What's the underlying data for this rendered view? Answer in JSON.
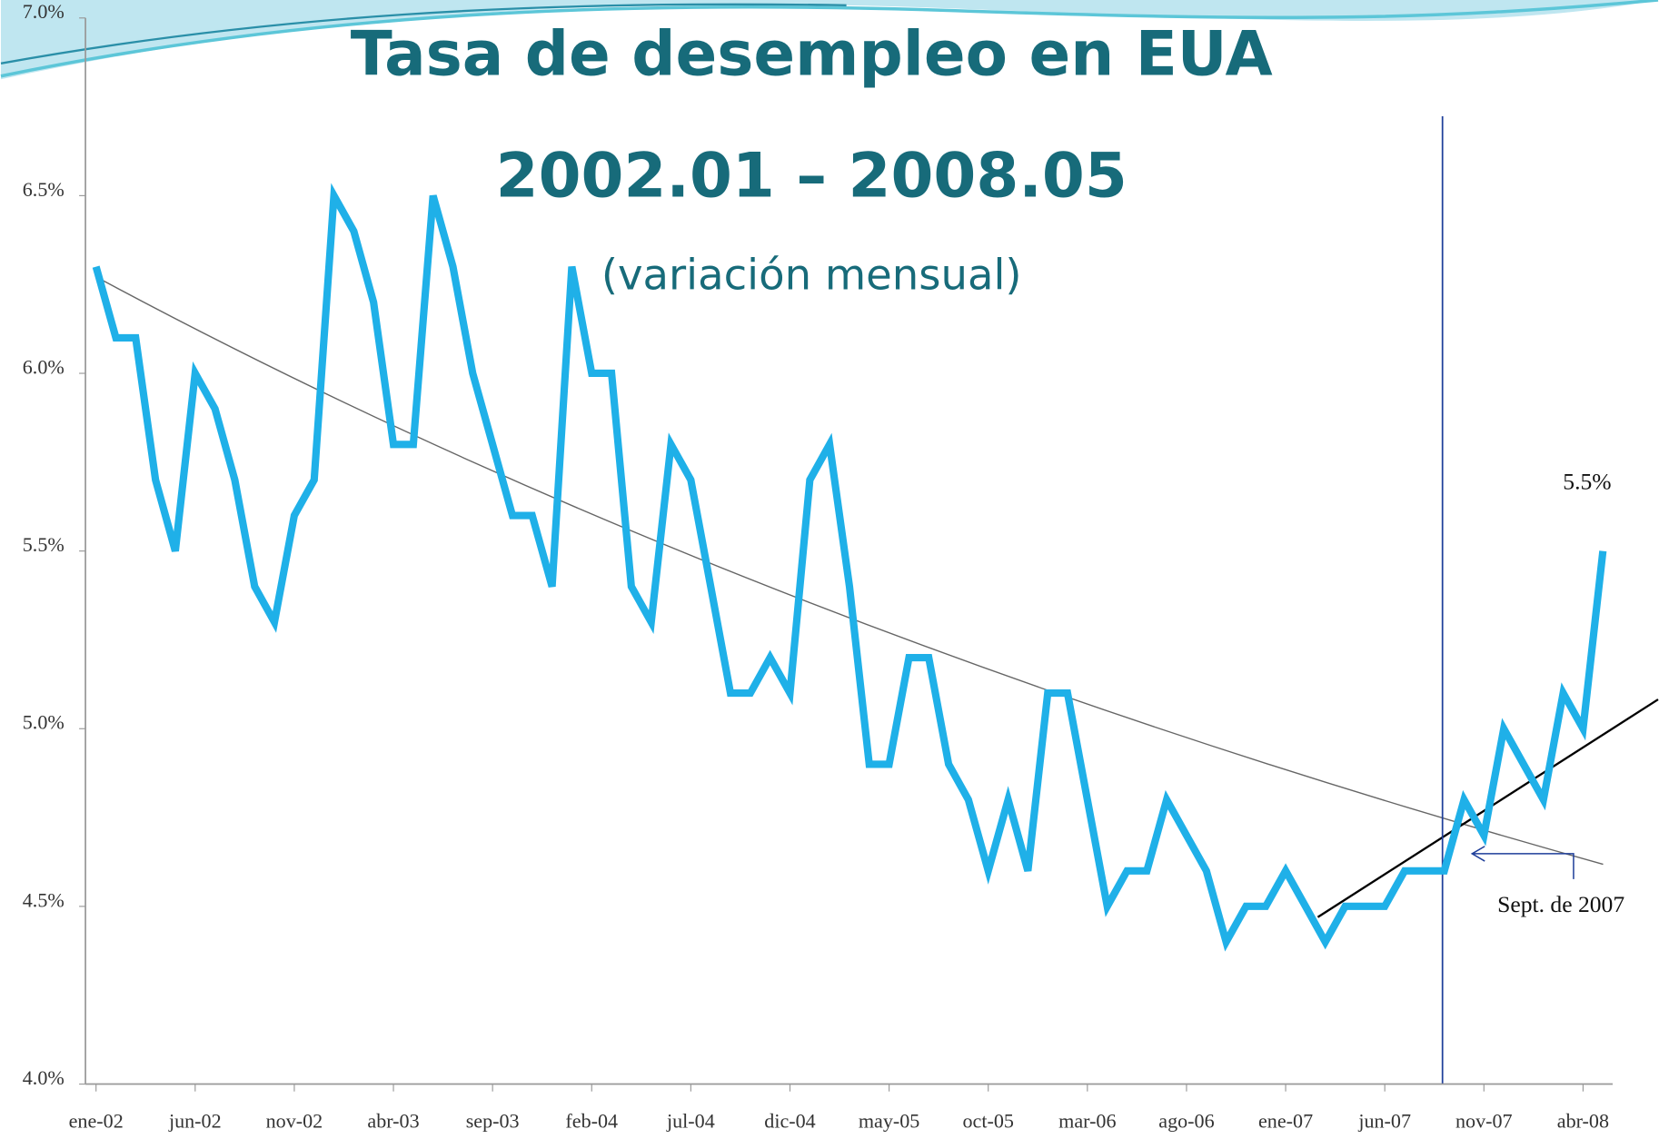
{
  "chart_data": {
    "type": "line",
    "title": "Tasa de desempleo en EUA",
    "subtitle": "2002.01 – 2008.05",
    "subtitle2": "(variación mensual)",
    "annotations": [
      "5.5%",
      "Sept. de 2007"
    ],
    "categories": [
      "ene-02",
      null,
      null,
      null,
      null,
      "jun-02",
      null,
      null,
      null,
      null,
      "nov-02",
      null,
      null,
      null,
      null,
      "abr-03",
      null,
      null,
      null,
      null,
      "sep-03",
      null,
      null,
      null,
      null,
      "feb-04",
      null,
      null,
      null,
      null,
      "jul-04",
      null,
      null,
      null,
      null,
      "dic-04",
      null,
      null,
      null,
      null,
      "may-05",
      null,
      null,
      null,
      null,
      "oct-05",
      null,
      null,
      null,
      null,
      "mar-06",
      null,
      null,
      null,
      null,
      "ago-06",
      null,
      null,
      null,
      null,
      "ene-07",
      null,
      null,
      null,
      null,
      "jun-07",
      null,
      null,
      null,
      null,
      "nov-07",
      null,
      null,
      null,
      null,
      "abr-08",
      null
    ],
    "series": [
      {
        "name": "Tasa de desempleo",
        "color": "#1fb0e8",
        "values": [
          6.3,
          6.1,
          6.1,
          5.7,
          5.5,
          6.0,
          5.9,
          5.7,
          5.4,
          5.3,
          5.6,
          5.7,
          6.5,
          6.4,
          6.2,
          5.8,
          5.8,
          6.5,
          6.3,
          6.0,
          5.8,
          5.6,
          5.6,
          5.4,
          6.3,
          6.0,
          6.0,
          5.4,
          5.3,
          5.8,
          5.7,
          5.4,
          5.1,
          5.1,
          5.2,
          5.1,
          5.7,
          5.8,
          5.4,
          4.9,
          4.9,
          5.2,
          5.2,
          4.9,
          4.8,
          4.6,
          4.8,
          4.6,
          5.1,
          5.1,
          4.8,
          4.5,
          4.6,
          4.6,
          4.8,
          4.7,
          4.6,
          4.4,
          4.5,
          4.5,
          4.6,
          4.5,
          4.4,
          4.5,
          4.5,
          4.5,
          4.6,
          4.6,
          4.6,
          4.8,
          4.7,
          5.0,
          4.9,
          4.8,
          5.1,
          5.0,
          5.5
        ]
      }
    ],
    "ylim": [
      4.0,
      7.0
    ],
    "yticks": [
      {
        "value": 4.0,
        "label": "4.0%"
      },
      {
        "value": 4.5,
        "label": "4.5%"
      },
      {
        "value": 5.0,
        "label": "5.0%"
      },
      {
        "value": 5.5,
        "label": "5.5%"
      },
      {
        "value": 6.0,
        "label": "6.0%"
      },
      {
        "value": 6.5,
        "label": "6.5%"
      },
      {
        "value": 7.0,
        "label": "7.0%"
      }
    ],
    "grid": false
  }
}
